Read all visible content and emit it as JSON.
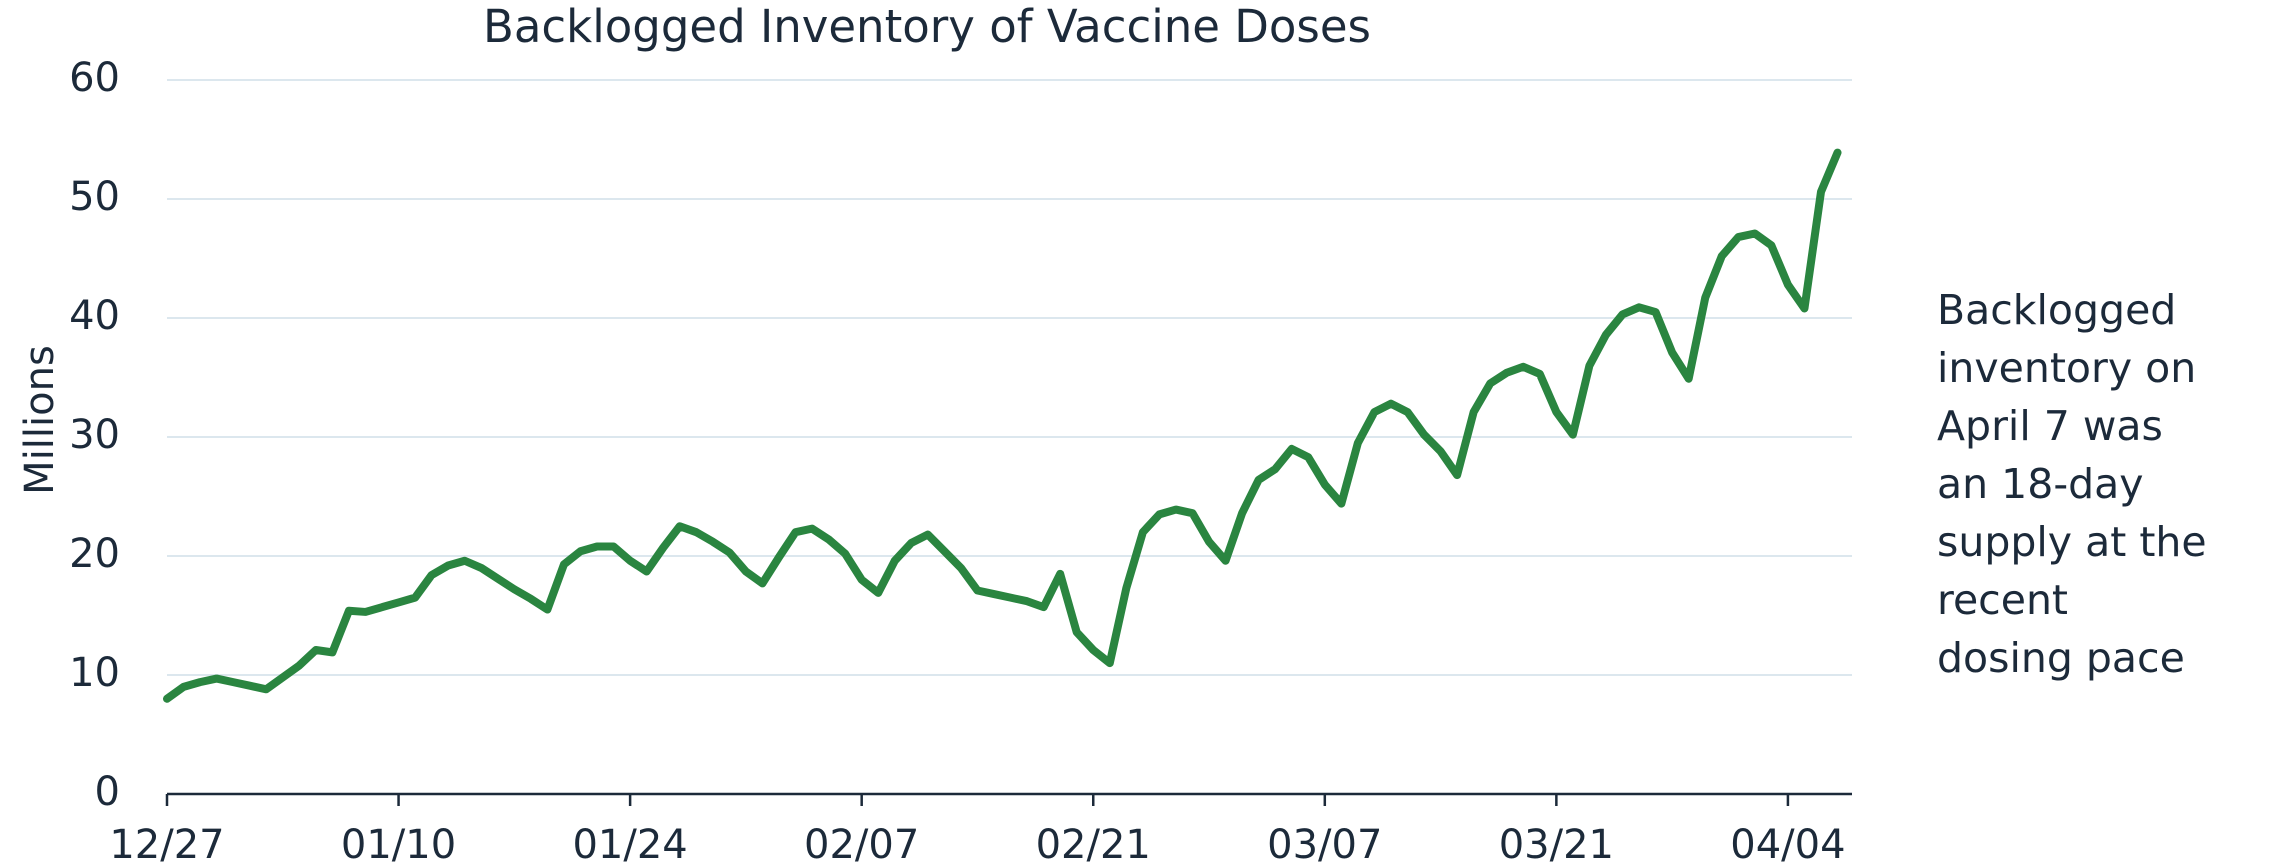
{
  "chart_data": {
    "type": "line",
    "title": "Backlogged Inventory of Vaccine Doses",
    "y_label": "Millions",
    "annotation": [
      "Backlogged",
      "inventory on",
      "April 7 was",
      "an 18-day",
      "supply at the",
      "recent",
      "dosing pace"
    ],
    "categories": [
      "12/27",
      null,
      null,
      null,
      null,
      null,
      null,
      null,
      null,
      null,
      null,
      null,
      null,
      null,
      "01/10",
      null,
      null,
      null,
      null,
      null,
      null,
      null,
      null,
      null,
      null,
      null,
      null,
      null,
      "01/24",
      null,
      null,
      null,
      null,
      null,
      null,
      null,
      null,
      null,
      null,
      null,
      null,
      null,
      "02/07",
      null,
      null,
      null,
      null,
      null,
      null,
      null,
      null,
      null,
      null,
      null,
      null,
      null,
      "02/21",
      null,
      null,
      null,
      null,
      null,
      null,
      null,
      null,
      null,
      null,
      null,
      null,
      null,
      "03/07",
      null,
      null,
      null,
      null,
      null,
      null,
      null,
      null,
      null,
      null,
      null,
      null,
      null,
      "03/21",
      null,
      null,
      null,
      null,
      null,
      null,
      null,
      null,
      null,
      null,
      null,
      null,
      null,
      "04/04",
      null,
      null,
      null
    ],
    "series": [
      {
        "name": "Backlogged inventory",
        "color": "#2a8540",
        "values": [
          8.0,
          9.0,
          9.4,
          9.7,
          9.4,
          9.1,
          8.8,
          9.8,
          10.8,
          12.1,
          11.9,
          15.4,
          15.3,
          15.7,
          16.1,
          16.5,
          18.4,
          19.2,
          19.6,
          19.0,
          18.1,
          17.2,
          16.4,
          15.5,
          19.3,
          20.4,
          20.8,
          20.8,
          19.6,
          18.7,
          20.7,
          22.5,
          22.0,
          21.2,
          20.3,
          18.7,
          17.7,
          19.9,
          22.0,
          22.3,
          21.4,
          20.2,
          18.0,
          16.9,
          19.6,
          21.1,
          21.8,
          20.4,
          19.0,
          17.1,
          16.8,
          16.5,
          16.2,
          15.7,
          18.5,
          13.6,
          12.1,
          11.0,
          17.3,
          22.0,
          23.5,
          23.9,
          23.6,
          21.2,
          19.6,
          23.6,
          26.4,
          27.3,
          29.0,
          28.3,
          26.0,
          24.4,
          29.5,
          32.1,
          32.8,
          32.1,
          30.2,
          28.8,
          26.8,
          32.1,
          34.5,
          35.4,
          35.9,
          35.3,
          32.1,
          30.2,
          36.0,
          38.6,
          40.3,
          40.9,
          40.5,
          37.1,
          34.9,
          41.7,
          45.2,
          46.8,
          47.1,
          46.1,
          42.8,
          40.8,
          50.6,
          53.9
        ]
      }
    ],
    "ylim": [
      0,
      60
    ],
    "yticks": [
      0,
      10,
      20,
      30,
      40,
      50,
      60
    ],
    "grid": true
  }
}
